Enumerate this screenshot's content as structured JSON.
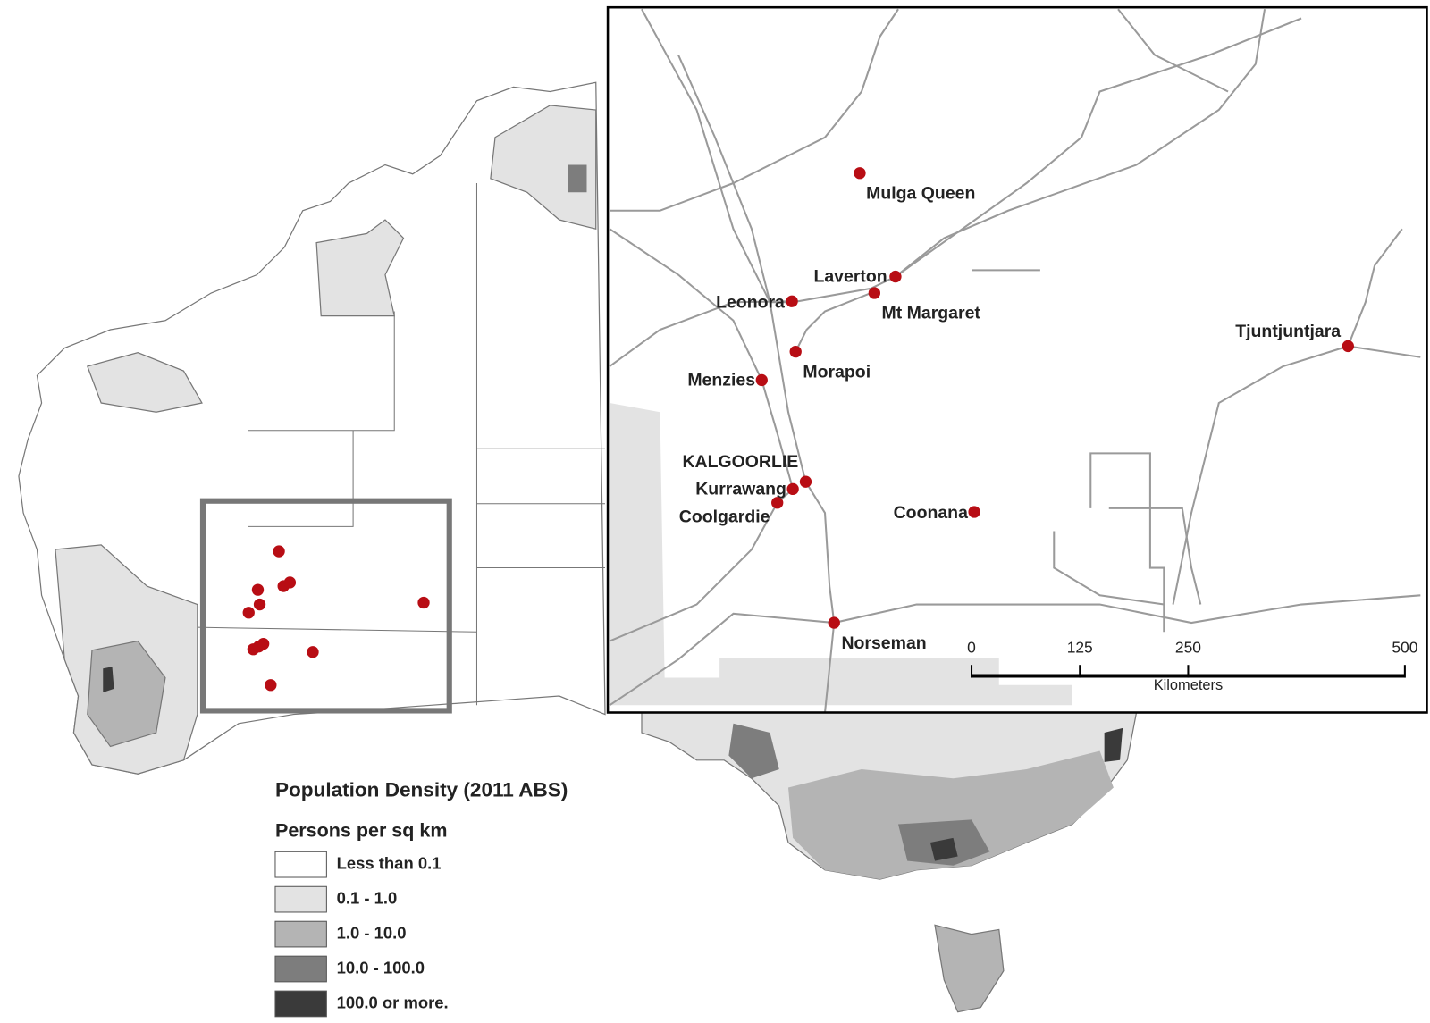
{
  "legend": {
    "title": "Population Density (2011 ABS)",
    "subtitle": "Persons per sq km",
    "classes": [
      {
        "label": "Less than 0.1",
        "color": "#ffffff"
      },
      {
        "label": "0.1 - 1.0",
        "color": "#e3e3e3"
      },
      {
        "label": "1.0 - 10.0",
        "color": "#b4b4b4"
      },
      {
        "label": "10.0 - 100.0",
        "color": "#7d7d7d"
      },
      {
        "label": "100.0 or more.",
        "color": "#3a3a3a"
      }
    ]
  },
  "towns": [
    {
      "label": "Mulga Queen"
    },
    {
      "label": "Laverton"
    },
    {
      "label": "Mt Margaret"
    },
    {
      "label": "Leonora"
    },
    {
      "label": "Morapoi"
    },
    {
      "label": "Menzies"
    },
    {
      "label": "KALGOORLIE"
    },
    {
      "label": "Kurrawang"
    },
    {
      "label": "Coolgardie"
    },
    {
      "label": "Coonana"
    },
    {
      "label": "Tjuntjuntjara"
    },
    {
      "label": "Norseman"
    }
  ],
  "scale_bar": {
    "ticks": [
      0,
      125,
      250,
      500
    ],
    "unit": "Kilometers"
  }
}
